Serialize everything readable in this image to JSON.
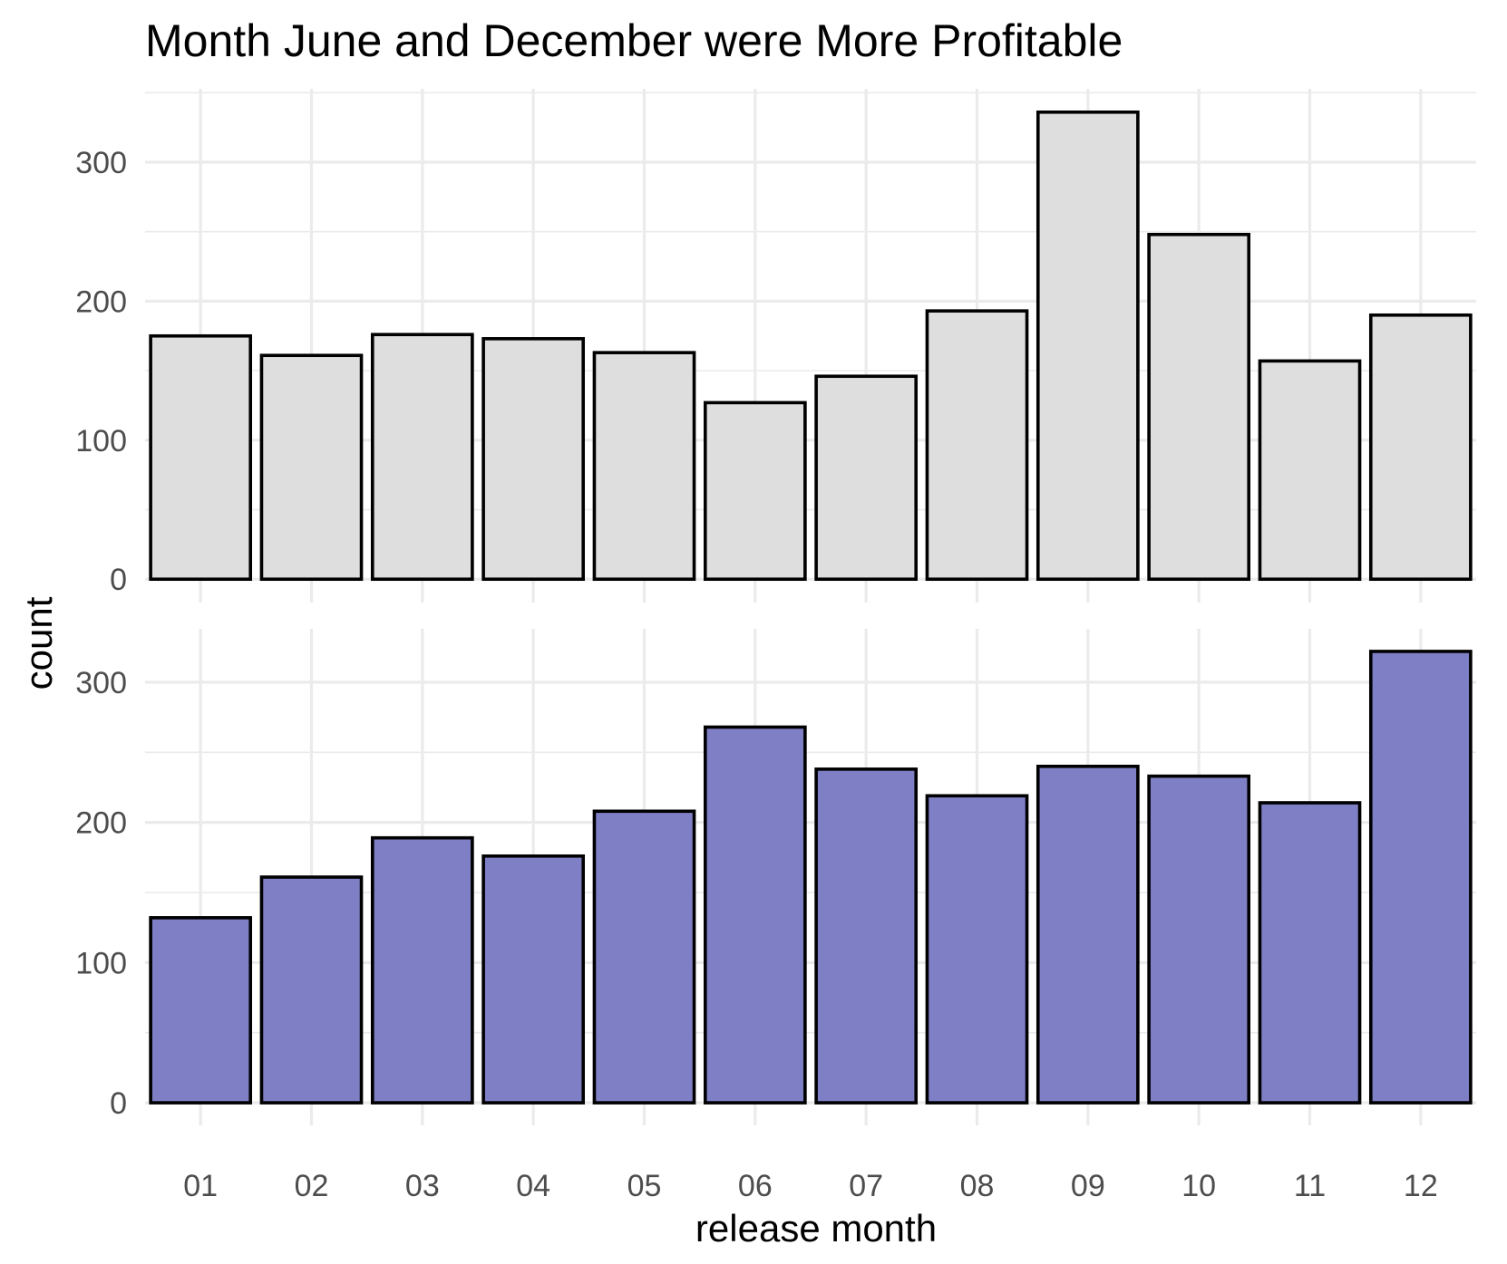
{
  "chart_data": {
    "type": "bar",
    "title": "Month June and December were More Profitable",
    "xlabel": "release month",
    "ylabel": "count",
    "categories": [
      "01",
      "02",
      "03",
      "04",
      "05",
      "06",
      "07",
      "08",
      "09",
      "10",
      "11",
      "12"
    ],
    "ylim": [
      0,
      350
    ],
    "yticks": [
      0,
      100,
      200,
      300
    ],
    "grid": true,
    "legend": "none",
    "panels": [
      {
        "color": "#dedede",
        "values": [
          175,
          161,
          176,
          173,
          163,
          127,
          146,
          193,
          336,
          248,
          157,
          190
        ]
      },
      {
        "color": "#7f7fc6",
        "values": [
          132,
          161,
          189,
          176,
          208,
          268,
          238,
          219,
          240,
          233,
          214,
          322
        ]
      }
    ]
  }
}
